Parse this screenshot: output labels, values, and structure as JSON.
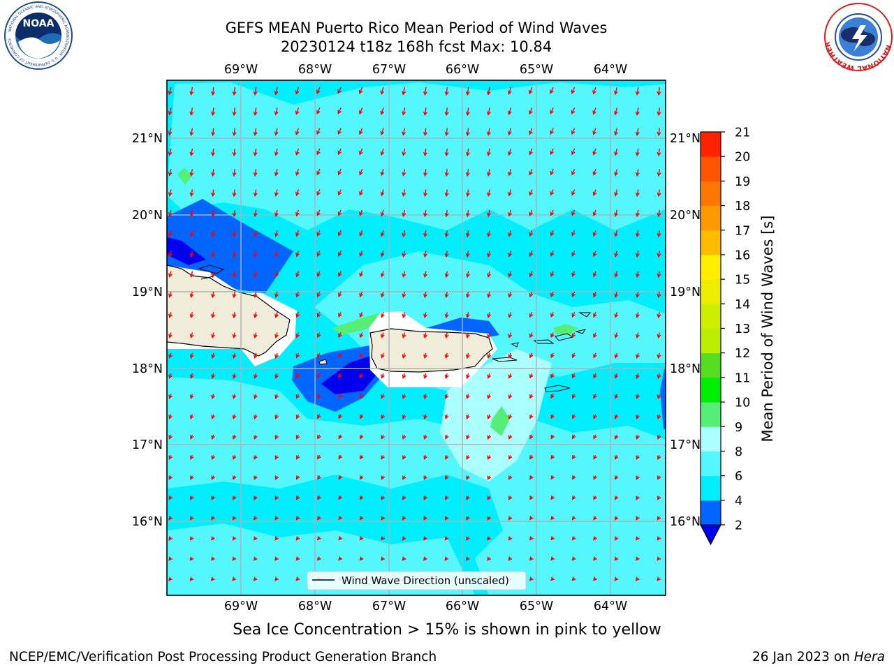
{
  "header": {
    "title_line1": "GEFS MEAN Puerto Rico Mean Period of Wind Waves",
    "title_line2": "20230124 t18z 168h fcst   Max: 10.84"
  },
  "logos": {
    "left": "NOAA",
    "left_ring_text": "NATIONAL OCEANIC AND ATMOSPHERIC ADMINISTRATION · U.S. DEPARTMENT OF COMMERCE",
    "right_ring_text": "NATIONAL WEATHER SERVICE"
  },
  "map": {
    "lon_labels": [
      "69°W",
      "68°W",
      "67°W",
      "66°W",
      "65°W",
      "64°W"
    ],
    "lat_labels": [
      "21°N",
      "20°N",
      "19°N",
      "18°N",
      "17°N",
      "16°N"
    ],
    "lon_range": [
      -70.0,
      -63.25
    ],
    "lat_range": [
      15.0,
      21.75
    ],
    "legend_label": "Wind Wave Direction (unscaled)",
    "colors": {
      "land": "#efecd9",
      "arrow": "#ff0000",
      "grid": "#b0b0b0",
      "coast": "#000000"
    },
    "regions": [
      {
        "name": "background",
        "bin": "4-6"
      },
      {
        "name": "north-lighter-band",
        "bin": "6-8"
      },
      {
        "name": "south-lighter-band",
        "bin": "6-8"
      },
      {
        "name": "mona-passage-deep",
        "bin": "2-4"
      },
      {
        "name": "south-pr-deep",
        "bin": "2-4"
      },
      {
        "name": "east-pr-light",
        "bin": "8-9"
      },
      {
        "name": "green-patches",
        "bin": "9-10"
      }
    ]
  },
  "colorbar": {
    "label": "Mean Period of Wind Waves [s]",
    "ticks": [
      "2",
      "4",
      "6",
      "8",
      "9",
      "10",
      "11",
      "12",
      "13",
      "14",
      "15",
      "16",
      "17",
      "18",
      "19",
      "20",
      "21"
    ],
    "bins": [
      {
        "from": 2,
        "to": 4,
        "color": "#0066ff"
      },
      {
        "from": 4,
        "to": 6,
        "color": "#00eeff"
      },
      {
        "from": 6,
        "to": 8,
        "color": "#55f7ff"
      },
      {
        "from": 8,
        "to": 9,
        "color": "#aaffff"
      },
      {
        "from": 9,
        "to": 10,
        "color": "#55ee77"
      },
      {
        "from": 10,
        "to": 11,
        "color": "#00ee00"
      },
      {
        "from": 11,
        "to": 12,
        "color": "#55dd22"
      },
      {
        "from": 12,
        "to": 13,
        "color": "#bbee00"
      },
      {
        "from": 13,
        "to": 14,
        "color": "#ccee00"
      },
      {
        "from": 14,
        "to": 15,
        "color": "#eeee00"
      },
      {
        "from": 15,
        "to": 16,
        "color": "#ffee00"
      },
      {
        "from": 16,
        "to": 17,
        "color": "#ffbb00"
      },
      {
        "from": 17,
        "to": 18,
        "color": "#ff9900"
      },
      {
        "from": 18,
        "to": 19,
        "color": "#ff7700"
      },
      {
        "from": 19,
        "to": 20,
        "color": "#ff5500"
      },
      {
        "from": 20,
        "to": 21,
        "color": "#ff2200"
      }
    ],
    "under_color": "#0000ee",
    "over_color": "#ff0000"
  },
  "footer": {
    "caption": "Sea Ice Concentration > 15% is shown in pink to yellow",
    "credit_left": "NCEP/EMC/Verification Post Processing Product Generation Branch",
    "credit_right_prefix": "26 Jan 2023 on ",
    "credit_right_host": "Hera"
  }
}
